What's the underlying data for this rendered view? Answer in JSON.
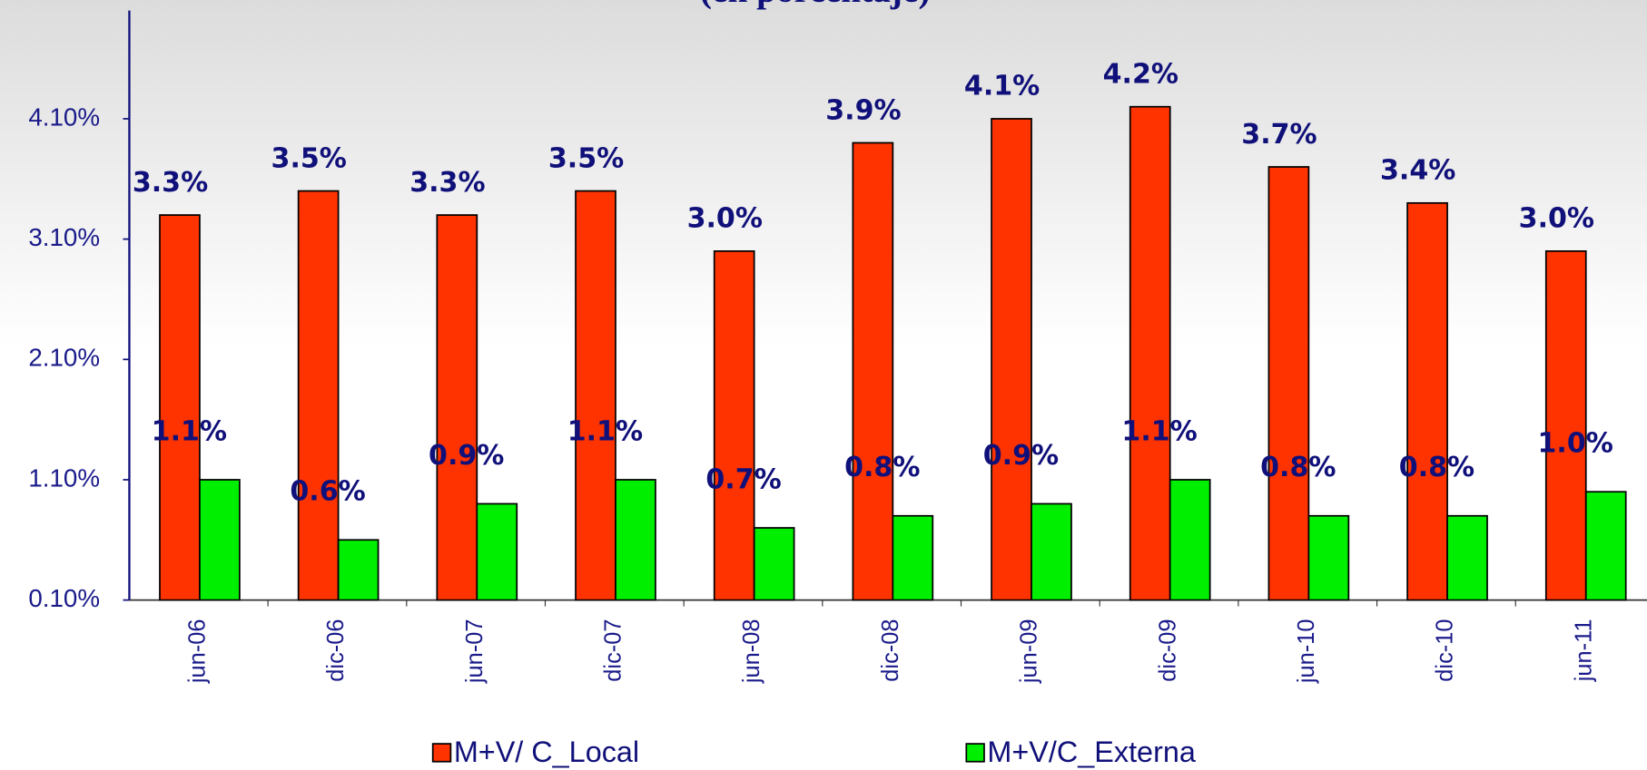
{
  "chart_data": {
    "type": "bar",
    "title": "(en porcentaje)",
    "categories": [
      "jun-06",
      "dic-06",
      "jun-07",
      "dic-07",
      "jun-08",
      "dic-08",
      "jun-09",
      "dic-09",
      "jun-10",
      "dic-10",
      "jun-11"
    ],
    "series": [
      {
        "name": "M+V/ C_Local",
        "color": "#ff3300",
        "values": [
          3.3,
          3.5,
          3.3,
          3.5,
          3.0,
          3.9,
          4.1,
          4.2,
          3.7,
          3.4,
          3.0
        ],
        "value_labels": [
          "3.3%",
          "3.5%",
          "3.3%",
          "3.5%",
          "3.0%",
          "3.9%",
          "4.1%",
          "4.2%",
          "3.7%",
          "3.4%",
          "3.0%"
        ]
      },
      {
        "name": "M+V/C_Externa",
        "color": "#00ee00",
        "values": [
          1.1,
          0.6,
          0.9,
          1.1,
          0.7,
          0.8,
          0.9,
          1.1,
          0.8,
          0.8,
          1.0
        ],
        "value_labels": [
          "1.1%",
          "0.6%",
          "0.9%",
          "1.1%",
          "0.7%",
          "0.8%",
          "0.9%",
          "1.1%",
          "0.8%",
          "0.8%",
          "1.0%"
        ]
      }
    ],
    "ylim": [
      0.1,
      5.0
    ],
    "yticks": [
      {
        "value": 0.1,
        "label": "0.10%"
      },
      {
        "value": 1.1,
        "label": "1.10%"
      },
      {
        "value": 2.1,
        "label": "2.10%"
      },
      {
        "value": 3.1,
        "label": "3.10%"
      },
      {
        "value": 4.1,
        "label": "4.10%"
      }
    ],
    "legend": "bottom"
  }
}
